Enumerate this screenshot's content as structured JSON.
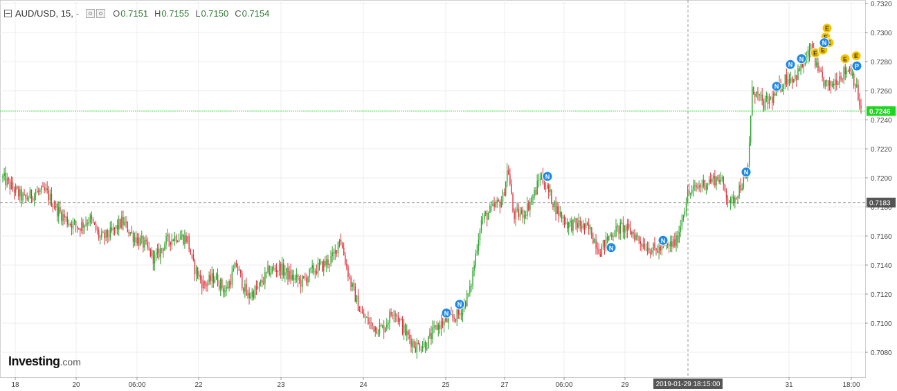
{
  "header": {
    "symbol": "AUD/USD, 15,",
    "dash": "-",
    "ohlc": [
      {
        "label": "O",
        "value": "0.7151"
      },
      {
        "label": "H",
        "value": "0.7155"
      },
      {
        "label": "L",
        "value": "0.7150"
      },
      {
        "label": "C",
        "value": "0.7154"
      }
    ]
  },
  "logo": {
    "main": "Investing",
    "suffix": ".com"
  },
  "colors": {
    "up": "#26a326",
    "down": "#e0303a",
    "grid": "#ececec",
    "last_price": "#1ed61e",
    "crosshair": "#999999",
    "news_badge": "#1e88e5",
    "event_badge": "#f5c400"
  },
  "chart_data": {
    "type": "candlestick",
    "title": "AUD/USD, 15,",
    "ylim": [
      0.7065,
      0.7322
    ],
    "y_ticks": [
      "0.7320",
      "0.7300",
      "0.7280",
      "0.7260",
      "0.7240",
      "0.7220",
      "0.7200",
      "0.7180",
      "0.7160",
      "0.7140",
      "0.7120",
      "0.7100",
      "0.7080"
    ],
    "x_ticks": [
      "18",
      "20",
      "06:00",
      "22",
      "23",
      "24",
      "25",
      "27",
      "06:00",
      "29",
      "31",
      "18:00"
    ],
    "grid": true,
    "last_price": {
      "value": 0.7246,
      "label": "0.7246"
    },
    "crosshair": {
      "price": 0.7183,
      "price_label": "0.7183",
      "time_label": "2019-01-29 18:15:00"
    },
    "anchors": [
      [
        0,
        0.72
      ],
      [
        2,
        0.7192
      ],
      [
        4,
        0.7185
      ],
      [
        6,
        0.719
      ],
      [
        8,
        0.719
      ],
      [
        10,
        0.7178
      ],
      [
        12,
        0.717
      ],
      [
        14,
        0.7166
      ],
      [
        16,
        0.7172
      ],
      [
        18,
        0.7158
      ],
      [
        20,
        0.7162
      ],
      [
        22,
        0.717
      ],
      [
        24,
        0.716
      ],
      [
        26,
        0.7154
      ],
      [
        28,
        0.7144
      ],
      [
        30,
        0.7156
      ],
      [
        32,
        0.716
      ],
      [
        34,
        0.7158
      ],
      [
        35,
        0.714
      ],
      [
        37,
        0.7126
      ],
      [
        39,
        0.7132
      ],
      [
        41,
        0.7122
      ],
      [
        43,
        0.714
      ],
      [
        45,
        0.7118
      ],
      [
        47,
        0.7124
      ],
      [
        49,
        0.7136
      ],
      [
        51,
        0.7138
      ],
      [
        53,
        0.7132
      ],
      [
        55,
        0.7128
      ],
      [
        57,
        0.7136
      ],
      [
        59,
        0.714
      ],
      [
        61,
        0.7146
      ],
      [
        62,
        0.716
      ],
      [
        64,
        0.7128
      ],
      [
        66,
        0.7106
      ],
      [
        68,
        0.7098
      ],
      [
        70,
        0.7096
      ],
      [
        72,
        0.711
      ],
      [
        74,
        0.7094
      ],
      [
        76,
        0.7084
      ],
      [
        78,
        0.7086
      ],
      [
        80,
        0.7098
      ],
      [
        82,
        0.7102
      ],
      [
        84,
        0.7106
      ],
      [
        86,
        0.7122
      ],
      [
        88,
        0.717
      ],
      [
        90,
        0.7178
      ],
      [
        92,
        0.7185
      ],
      [
        93,
        0.7208
      ],
      [
        94,
        0.7174
      ],
      [
        96,
        0.7176
      ],
      [
        98,
        0.719
      ],
      [
        99,
        0.7202
      ],
      [
        100,
        0.7194
      ],
      [
        102,
        0.7178
      ],
      [
        104,
        0.7168
      ],
      [
        106,
        0.7168
      ],
      [
        108,
        0.7164
      ],
      [
        110,
        0.715
      ],
      [
        112,
        0.7162
      ],
      [
        114,
        0.7166
      ],
      [
        116,
        0.7162
      ],
      [
        118,
        0.7154
      ],
      [
        120,
        0.715
      ],
      [
        122,
        0.7152
      ],
      [
        124,
        0.7156
      ],
      [
        126,
        0.7188
      ],
      [
        128,
        0.7194
      ],
      [
        130,
        0.7198
      ],
      [
        132,
        0.72
      ],
      [
        134,
        0.7182
      ],
      [
        136,
        0.7196
      ],
      [
        137,
        0.7198
      ],
      [
        138,
        0.7262
      ],
      [
        140,
        0.725
      ],
      [
        142,
        0.7256
      ],
      [
        144,
        0.7268
      ],
      [
        146,
        0.727
      ],
      [
        148,
        0.7282
      ],
      [
        149,
        0.729
      ],
      [
        150,
        0.7272
      ],
      [
        152,
        0.7262
      ],
      [
        154,
        0.727
      ],
      [
        156,
        0.7276
      ],
      [
        157,
        0.7264
      ],
      [
        158,
        0.7246
      ]
    ],
    "news_markers": [
      {
        "label": "N",
        "x": 645,
        "price": 0.7107
      },
      {
        "label": "N",
        "x": 664,
        "price": 0.7113
      },
      {
        "label": "N",
        "x": 791,
        "price": 0.7201
      },
      {
        "label": "N",
        "x": 883,
        "price": 0.7152
      },
      {
        "label": "N",
        "x": 958,
        "price": 0.7157
      },
      {
        "label": "N",
        "x": 1078,
        "price": 0.7204
      },
      {
        "label": "N",
        "x": 1122,
        "price": 0.7263
      },
      {
        "label": "N",
        "x": 1142,
        "price": 0.7278
      },
      {
        "label": "N",
        "x": 1158,
        "price": 0.7282
      },
      {
        "label": "N",
        "x": 1191,
        "price": 0.7293
      }
    ],
    "event_markers": [
      {
        "label": "E",
        "x": 1178,
        "price": 0.7286
      },
      {
        "label": "E",
        "x": 1189,
        "price": 0.7288
      },
      {
        "label": "E",
        "x": 1193,
        "price": 0.7297
      },
      {
        "label": "E",
        "x": 1195,
        "price": 0.7303
      },
      {
        "label": "E",
        "x": 1198,
        "price": 0.7293
      },
      {
        "label": "E",
        "x": 1221,
        "price": 0.7282
      },
      {
        "label": "E",
        "x": 1237,
        "price": 0.7284
      }
    ],
    "p_markers": [
      {
        "label": "P",
        "x": 1238,
        "price": 0.7277
      }
    ]
  }
}
